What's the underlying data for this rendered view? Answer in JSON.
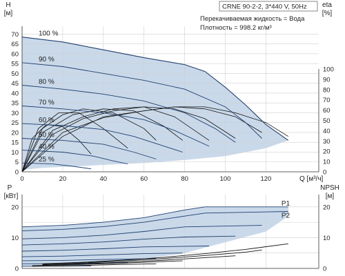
{
  "chart_data": [
    {
      "type": "line",
      "title": "",
      "info": {
        "model": "CRNE 90-2-2, 3*440 V, 50Hz",
        "liquid": "Перекачиваемая жидкость = Вода",
        "density": "Плотность = 998.2 кг/м³"
      },
      "xlabel": "Q [м³/ч]",
      "ylabel_left": [
        "H",
        "[м]"
      ],
      "ylabel_right": [
        "eta",
        "[%]"
      ],
      "xlim": [
        0,
        146
      ],
      "ylim": [
        0,
        74
      ],
      "eta_lim": [
        0,
        100
      ],
      "x_ticks": [
        0,
        20,
        40,
        60,
        80,
        100,
        120
      ],
      "y_ticks": [
        0,
        5,
        10,
        15,
        20,
        25,
        30,
        35,
        40,
        45,
        50,
        55,
        60,
        65,
        70
      ],
      "eta_ticks": [
        0,
        10,
        20,
        30,
        40,
        50,
        60,
        70,
        80,
        90,
        100
      ],
      "grid": true,
      "envelope": {
        "upper": [
          [
            0,
            68.5
          ],
          [
            20,
            66
          ],
          [
            40,
            62
          ],
          [
            60,
            58
          ],
          [
            80,
            54.5
          ],
          [
            90,
            51
          ],
          [
            100,
            43
          ],
          [
            110,
            34
          ],
          [
            120,
            24
          ],
          [
            131,
            16
          ]
        ],
        "lower": [
          [
            131,
            16
          ],
          [
            120,
            12
          ],
          [
            100,
            8
          ],
          [
            80,
            6
          ],
          [
            60,
            4.5
          ],
          [
            40,
            3.5
          ],
          [
            20,
            2.5
          ],
          [
            10,
            2
          ],
          [
            0,
            1
          ]
        ]
      },
      "series": [
        {
          "name": "100 %",
          "points": [
            [
              0,
              68.5
            ],
            [
              20,
              66
            ],
            [
              40,
              62
            ],
            [
              60,
              58
            ],
            [
              80,
              54.5
            ],
            [
              90,
              51
            ],
            [
              100,
              43
            ],
            [
              110,
              34
            ],
            [
              120,
              24
            ],
            [
              131,
              16
            ]
          ]
        },
        {
          "name": "90 %",
          "points": [
            [
              0,
              55.5
            ],
            [
              20,
              53.5
            ],
            [
              40,
              50
            ],
            [
              60,
              46.5
            ],
            [
              80,
              42
            ],
            [
              100,
              33
            ],
            [
              110,
              25
            ],
            [
              118,
              17
            ]
          ]
        },
        {
          "name": "80 %",
          "points": [
            [
              0,
              44
            ],
            [
              20,
              42
            ],
            [
              40,
              39.5
            ],
            [
              60,
              36
            ],
            [
              80,
              30
            ],
            [
              95,
              22
            ],
            [
              105,
              15
            ]
          ]
        },
        {
          "name": "70 %",
          "points": [
            [
              0,
              33.5
            ],
            [
              20,
              32
            ],
            [
              40,
              30
            ],
            [
              60,
              26.5
            ],
            [
              75,
              21
            ],
            [
              92,
              13
            ]
          ]
        },
        {
          "name": "60 %",
          "points": [
            [
              0,
              24.5
            ],
            [
              20,
              23.5
            ],
            [
              40,
              21.5
            ],
            [
              55,
              18
            ],
            [
              70,
              13
            ],
            [
              79,
              10
            ]
          ]
        },
        {
          "name": "50 %",
          "points": [
            [
              0,
              17
            ],
            [
              20,
              16
            ],
            [
              40,
              14
            ],
            [
              55,
              10
            ],
            [
              66,
              6.5
            ]
          ]
        },
        {
          "name": "40 %",
          "points": [
            [
              0,
              11
            ],
            [
              20,
              10
            ],
            [
              35,
              8
            ],
            [
              45,
              5.5
            ],
            [
              52,
              4
            ]
          ]
        },
        {
          "name": "25 %",
          "points": [
            [
              0,
              4.5
            ],
            [
              15,
              4
            ],
            [
              25,
              2.8
            ],
            [
              34,
              1.5
            ]
          ]
        }
      ],
      "efficiency_curves": [
        {
          "points": [
            [
              0,
              0
            ],
            [
              20,
              18
            ],
            [
              40,
              28
            ],
            [
              60,
              31
            ],
            [
              75,
              33
            ],
            [
              90,
              33
            ],
            [
              105,
              30
            ],
            [
              120,
              25
            ],
            [
              131,
              18
            ]
          ]
        },
        {
          "points": [
            [
              0,
              0
            ],
            [
              20,
              20
            ],
            [
              40,
              27.5
            ],
            [
              60,
              31
            ],
            [
              75,
              33
            ],
            [
              90,
              32
            ],
            [
              105,
              28
            ],
            [
              118,
              20
            ]
          ]
        },
        {
          "points": [
            [
              0,
              0
            ],
            [
              15,
              19
            ],
            [
              30,
              27
            ],
            [
              45,
              31
            ],
            [
              60,
              33
            ],
            [
              75,
              32
            ],
            [
              90,
              27
            ],
            [
              105,
              17
            ]
          ]
        },
        {
          "points": [
            [
              0,
              0
            ],
            [
              15,
              21
            ],
            [
              30,
              28
            ],
            [
              45,
              32
            ],
            [
              60,
              33
            ],
            [
              75,
              28
            ],
            [
              92,
              16
            ]
          ]
        },
        {
          "points": [
            [
              0,
              0
            ],
            [
              10,
              20
            ],
            [
              25,
              29
            ],
            [
              40,
              32
            ],
            [
              55,
              31
            ],
            [
              70,
              23
            ],
            [
              79,
              16
            ]
          ]
        },
        {
          "points": [
            [
              0,
              0
            ],
            [
              10,
              22
            ],
            [
              20,
              29
            ],
            [
              30,
              32
            ],
            [
              45,
              30
            ],
            [
              60,
              22
            ],
            [
              66,
              16
            ]
          ]
        },
        {
          "points": [
            [
              0,
              0
            ],
            [
              8,
              22
            ],
            [
              18,
              30
            ],
            [
              28,
              30
            ],
            [
              40,
              22
            ],
            [
              52,
              12
            ]
          ]
        },
        {
          "points": [
            [
              0,
              0
            ],
            [
              5,
              17
            ],
            [
              12,
              24
            ],
            [
              20,
              23
            ],
            [
              28,
              16
            ],
            [
              34,
              9
            ]
          ]
        }
      ]
    },
    {
      "type": "line",
      "title": "",
      "xlabel": "",
      "ylabel_left": [
        "P",
        "[кВт]"
      ],
      "ylabel_right": [
        "NPSH",
        "[м]"
      ],
      "xlim": [
        0,
        146
      ],
      "ylim": [
        0,
        24
      ],
      "npsh_lim": [
        0,
        24
      ],
      "y_ticks": [
        0,
        10,
        20
      ],
      "npsh_ticks": [
        0,
        10,
        20
      ],
      "grid": true,
      "envelope": {
        "upper": [
          [
            0,
            13.5
          ],
          [
            20,
            14
          ],
          [
            40,
            15
          ],
          [
            60,
            16.5
          ],
          [
            80,
            19
          ],
          [
            90,
            20
          ],
          [
            131,
            20
          ]
        ],
        "lower": [
          [
            131,
            17
          ],
          [
            120,
            12
          ],
          [
            100,
            8.5
          ],
          [
            80,
            5
          ],
          [
            60,
            3
          ],
          [
            40,
            1.6
          ],
          [
            20,
            0.8
          ],
          [
            0,
            0.5
          ]
        ]
      },
      "series": [
        {
          "name": "P1",
          "points": [
            [
              0,
              13.5
            ],
            [
              20,
              14
            ],
            [
              40,
              15
            ],
            [
              60,
              16.5
            ],
            [
              80,
              19
            ],
            [
              90,
              20
            ],
            [
              131,
              20
            ]
          ]
        },
        {
          "name": "P2",
          "points": [
            [
              0,
              12.2
            ],
            [
              20,
              12.7
            ],
            [
              40,
              13.6
            ],
            [
              60,
              15
            ],
            [
              80,
              17
            ],
            [
              90,
              18
            ],
            [
              131,
              18.5
            ]
          ]
        },
        {
          "name": "",
          "points": [
            [
              0,
              9.6
            ],
            [
              20,
              10
            ],
            [
              40,
              10.8
            ],
            [
              60,
              12
            ],
            [
              80,
              13.5
            ],
            [
              118,
              14
            ]
          ]
        },
        {
          "name": "",
          "points": [
            [
              0,
              7.6
            ],
            [
              20,
              8
            ],
            [
              40,
              8.6
            ],
            [
              60,
              9.5
            ],
            [
              80,
              10.2
            ],
            [
              105,
              10.5
            ]
          ]
        },
        {
          "name": "",
          "points": [
            [
              0,
              5.6
            ],
            [
              20,
              5.9
            ],
            [
              40,
              6.4
            ],
            [
              60,
              7
            ],
            [
              92,
              7.3
            ]
          ]
        },
        {
          "name": "",
          "points": [
            [
              0,
              3.8
            ],
            [
              20,
              4
            ],
            [
              40,
              4.4
            ],
            [
              60,
              4.8
            ],
            [
              79,
              5
            ]
          ]
        },
        {
          "name": "",
          "points": [
            [
              0,
              2.5
            ],
            [
              20,
              2.6
            ],
            [
              40,
              2.9
            ],
            [
              66,
              3.2
            ]
          ]
        },
        {
          "name": "",
          "points": [
            [
              0,
              1.5
            ],
            [
              20,
              1.6
            ],
            [
              40,
              1.8
            ],
            [
              52,
              1.9
            ]
          ]
        },
        {
          "name": "",
          "points": [
            [
              0,
              0.7
            ],
            [
              20,
              0.75
            ],
            [
              34,
              0.8
            ]
          ]
        }
      ],
      "npsh_curves": [
        {
          "points": [
            [
              10,
              1.5
            ],
            [
              30,
              2
            ],
            [
              50,
              2.7
            ],
            [
              70,
              3.6
            ],
            [
              90,
              4.8
            ],
            [
              110,
              6.2
            ],
            [
              131,
              8
            ]
          ]
        },
        {
          "points": [
            [
              10,
              1.3
            ],
            [
              30,
              1.8
            ],
            [
              50,
              2.4
            ],
            [
              70,
              3.2
            ],
            [
              90,
              4.2
            ],
            [
              110,
              5.3
            ],
            [
              118,
              6
            ]
          ]
        },
        {
          "points": [
            [
              10,
              1.1
            ],
            [
              30,
              1.5
            ],
            [
              50,
              2
            ],
            [
              70,
              2.7
            ],
            [
              90,
              3.5
            ],
            [
              105,
              4.1
            ]
          ]
        },
        {
          "points": [
            [
              5,
              0.9
            ],
            [
              25,
              1.2
            ],
            [
              45,
              1.6
            ],
            [
              65,
              2.1
            ],
            [
              79,
              2.5
            ]
          ]
        },
        {
          "points": [
            [
              5,
              0.7
            ],
            [
              25,
              0.9
            ],
            [
              45,
              1.2
            ],
            [
              66,
              1.5
            ]
          ]
        }
      ]
    }
  ]
}
